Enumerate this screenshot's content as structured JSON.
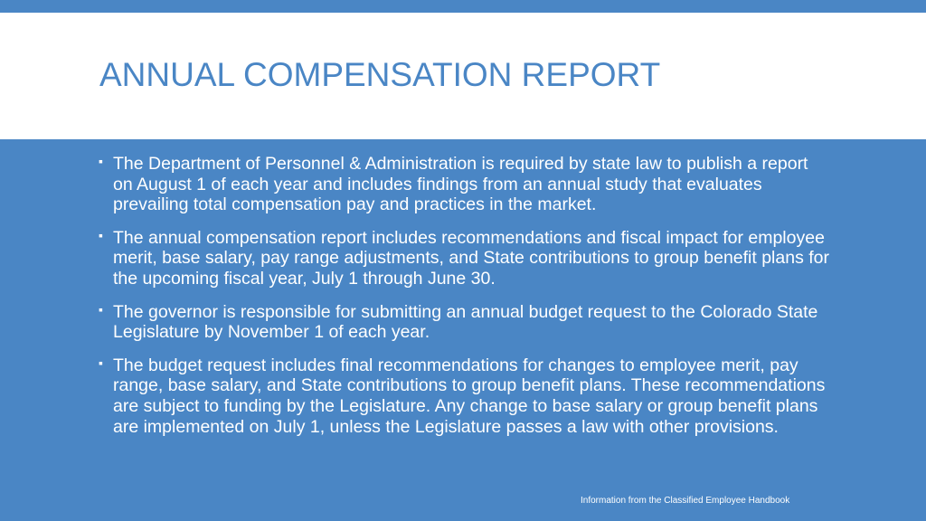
{
  "slide": {
    "title": "ANNUAL COMPENSATION REPORT",
    "bullet_marker": "▪",
    "bullets": [
      "The Department of Personnel & Administration is required by state law to publish a report on August 1 of each year and includes findings from an annual study that evaluates prevailing total compensation pay and practices in the market.",
      "The annual compensation report includes recommendations and fiscal impact for employee merit, base salary, pay range adjustments, and State contributions to group benefit plans for the upcoming fiscal year, July 1 through June 30.",
      "The governor is responsible for submitting an annual budget request to the Colorado State Legislature by November 1 of each year.",
      "The budget request includes final recommendations for changes to employee merit, pay range, base salary, and State contributions to group benefit plans. These recommendations are subject to funding by the Legislature. Any change to base salary or group benefit plans are implemented on July 1, unless the Legislature passes a law with other provisions."
    ],
    "footer": "Information from the Classified Employee Handbook"
  },
  "colors": {
    "accent_blue": "#4a86c5",
    "title_band": "#ffffff",
    "text": "#ffffff"
  }
}
